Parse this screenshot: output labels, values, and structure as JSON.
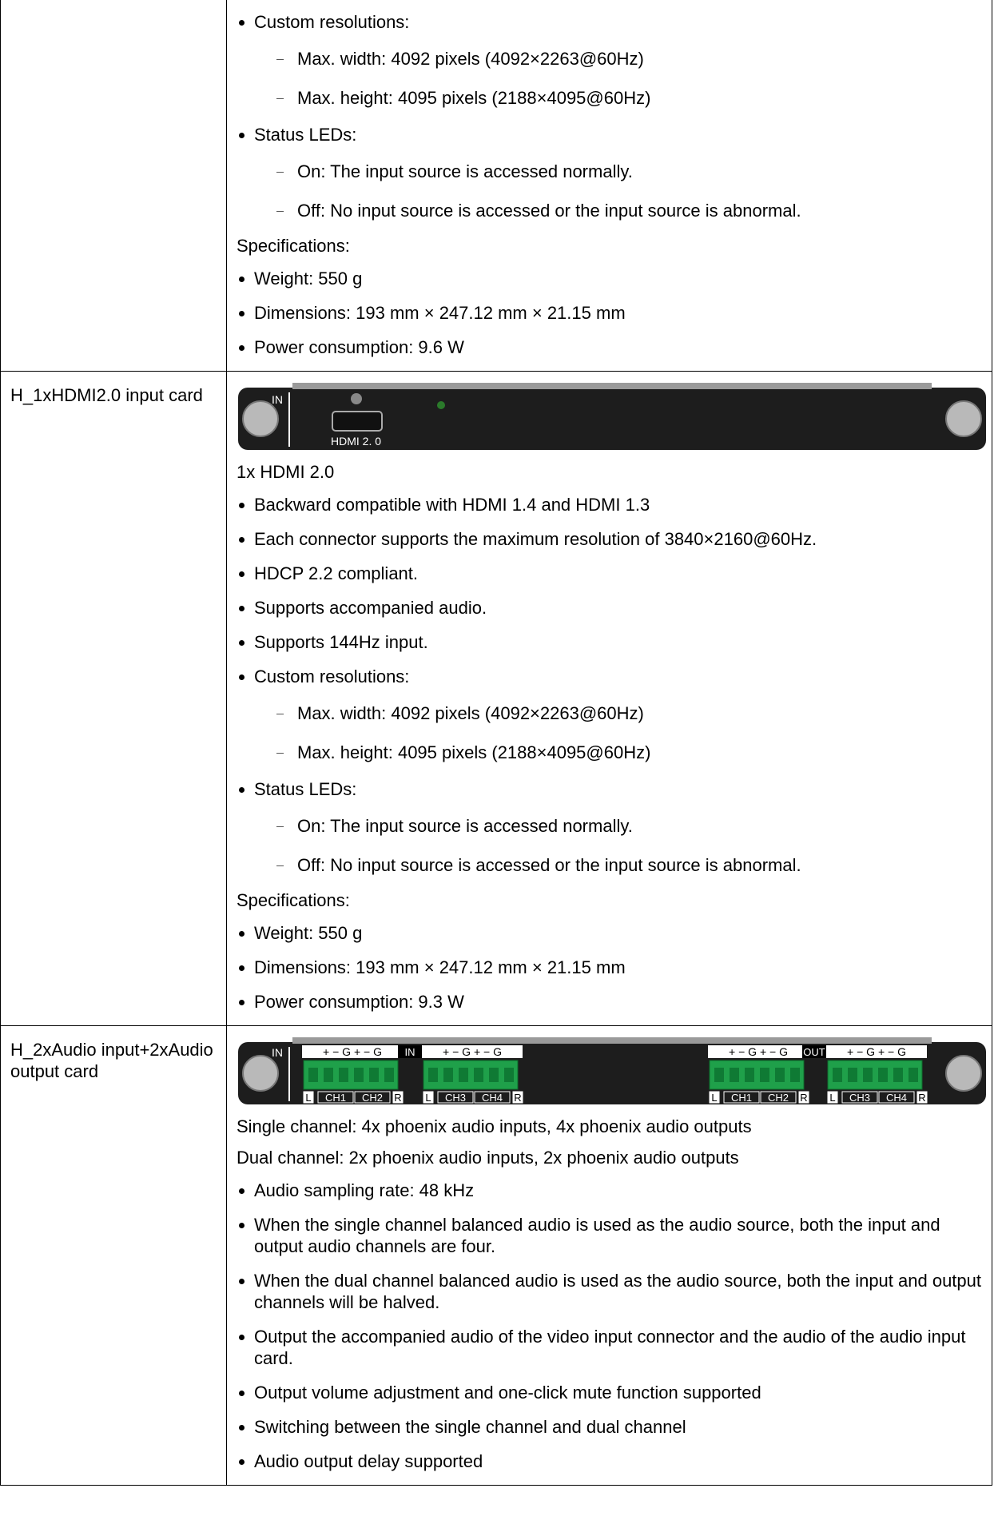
{
  "rows": [
    {
      "label": "",
      "items": [
        {
          "kind": "bullet",
          "text": "Custom resolutions:"
        },
        {
          "kind": "sub",
          "text": "Max. width: 4092 pixels (4092×2263@60Hz)"
        },
        {
          "kind": "sub",
          "text": "Max. height: 4095 pixels (2188×4095@60Hz)"
        },
        {
          "kind": "bullet",
          "text": "Status LEDs:"
        },
        {
          "kind": "sub",
          "text": "On: The input source is accessed normally."
        },
        {
          "kind": "sub",
          "text": "Off: No input source is accessed or the input source is abnormal."
        },
        {
          "kind": "para",
          "text": "Specifications:"
        },
        {
          "kind": "bullet",
          "text": "Weight: 550 g"
        },
        {
          "kind": "bullet",
          "text": "Dimensions: 193 mm × 247.12 mm × 21.15 mm"
        },
        {
          "kind": "bullet",
          "text": "Power consumption: 9.6 W"
        }
      ]
    },
    {
      "label": "H_1xHDMI2.0 input card",
      "panel": {
        "kind": "hdmi",
        "in": "IN",
        "port": "HDMI 2. 0"
      },
      "items": [
        {
          "kind": "para",
          "text": "1x HDMI 2.0"
        },
        {
          "kind": "bullet",
          "text": "Backward compatible with HDMI 1.4 and HDMI 1.3"
        },
        {
          "kind": "bullet",
          "text": "Each connector supports the maximum resolution of 3840×2160@60Hz."
        },
        {
          "kind": "bullet",
          "text": "HDCP 2.2 compliant."
        },
        {
          "kind": "bullet",
          "text": "Supports accompanied audio."
        },
        {
          "kind": "bullet",
          "text": "Supports 144Hz input."
        },
        {
          "kind": "bullet",
          "text": "Custom resolutions:"
        },
        {
          "kind": "sub",
          "text": "Max. width: 4092 pixels (4092×2263@60Hz)"
        },
        {
          "kind": "sub",
          "text": "Max. height: 4095 pixels (2188×4095@60Hz)"
        },
        {
          "kind": "bullet",
          "text": "Status LEDs:"
        },
        {
          "kind": "sub",
          "text": "On: The input source is accessed normally."
        },
        {
          "kind": "sub",
          "text": "Off: No input source is accessed or the input source is abnormal."
        },
        {
          "kind": "para",
          "text": "Specifications:"
        },
        {
          "kind": "bullet",
          "text": "Weight: 550 g"
        },
        {
          "kind": "bullet",
          "text": "Dimensions: 193 mm × 247.12 mm × 21.15 mm"
        },
        {
          "kind": "bullet",
          "text": "Power consumption: 9.3 W"
        }
      ]
    },
    {
      "label": "H_2xAudio input+2xAudio output card",
      "panel": {
        "kind": "audio",
        "in": "IN",
        "dividers": [
          "IN",
          "OUT"
        ],
        "groups": [
          {
            "top": "+ − G + − G",
            "bottom": [
              "L",
              "CH1",
              "CH2",
              "R"
            ]
          },
          {
            "top": "+ − G + − G",
            "bottom": [
              "L",
              "CH3",
              "CH4",
              "R"
            ]
          },
          {
            "top": "+ − G + − G",
            "bottom": [
              "L",
              "CH1",
              "CH2",
              "R"
            ]
          },
          {
            "top": "+ − G + − G",
            "bottom": [
              "L",
              "CH3",
              "CH4",
              "R"
            ]
          }
        ]
      },
      "items": [
        {
          "kind": "para",
          "text": "Single channel: 4x phoenix audio inputs, 4x phoenix audio outputs"
        },
        {
          "kind": "para",
          "text": "Dual channel: 2x phoenix audio inputs, 2x phoenix audio outputs"
        },
        {
          "kind": "bullet",
          "text": "Audio sampling rate: 48 kHz"
        },
        {
          "kind": "bullet",
          "text": "When the single channel balanced audio is used as the audio source, both the input and output audio channels are four."
        },
        {
          "kind": "bullet",
          "text": "When the dual channel balanced audio is used as the audio source, both the input and output channels will be halved."
        },
        {
          "kind": "bullet",
          "text": "Output the accompanied audio of the video input connector and the audio of the audio input card."
        },
        {
          "kind": "bullet",
          "text": "Output volume adjustment and one-click mute function supported"
        },
        {
          "kind": "bullet",
          "text": "Switching between the single channel and dual channel"
        },
        {
          "kind": "bullet",
          "text": "Audio output delay supported"
        }
      ]
    }
  ]
}
